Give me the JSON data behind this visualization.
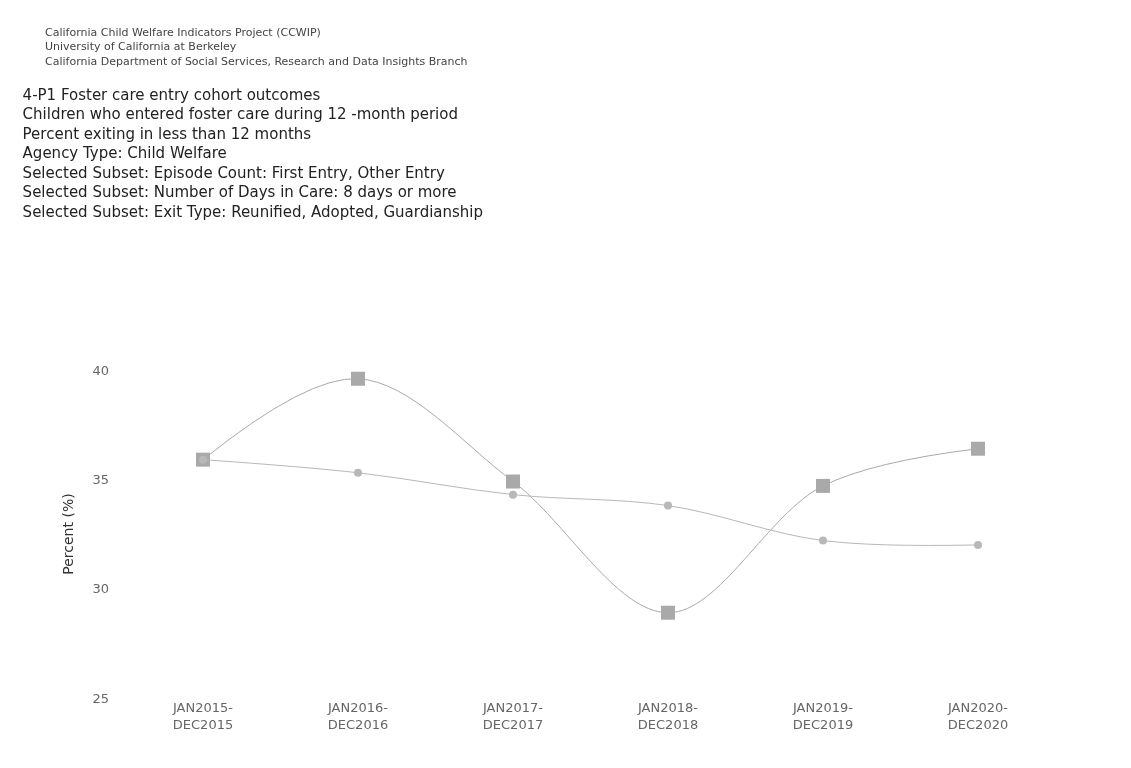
{
  "chart_data": {
    "type": "line",
    "title": "4-P1 Foster care entry cohort outcomes\nChildren who entered foster care during 12 -month period\nPercent exiting in less than 12 months\nAgency Type: Child Welfare\nSelected Subset: Episode Count: First Entry, Other Entry\nSelected Subset: Number of Days in Care: 8 days or more\nSelected Subset: Exit Type: Reunified, Adopted, Guardianship",
    "annotations": [
      "California Child Welfare Indicators Project (CCWIP)\nUniversity of California at Berkeley\nCalifornia Department of Social Services, Research and Data Insights Branch"
    ],
    "ylabel": "Percent (%)",
    "categories": [
      "JAN2015-\nDEC2015",
      "JAN2016-\nDEC2016",
      "JAN2017-\nDEC2017",
      "JAN2018-\nDEC2018",
      "JAN2019-\nDEC2019",
      "JAN2020-\nDEC2020"
    ],
    "series": [
      {
        "color": "#a9a9a9",
        "marker": "square",
        "values": [
          35.9,
          39.6,
          34.9,
          28.9,
          34.7,
          36.4
        ]
      },
      {
        "color": "#b8b8b8",
        "marker": "circle",
        "values": [
          35.9,
          35.3,
          34.3,
          33.8,
          32.2,
          32.0
        ]
      }
    ],
    "ylim": [
      25,
      40
    ],
    "yticks": [
      25,
      30,
      35,
      40
    ]
  }
}
